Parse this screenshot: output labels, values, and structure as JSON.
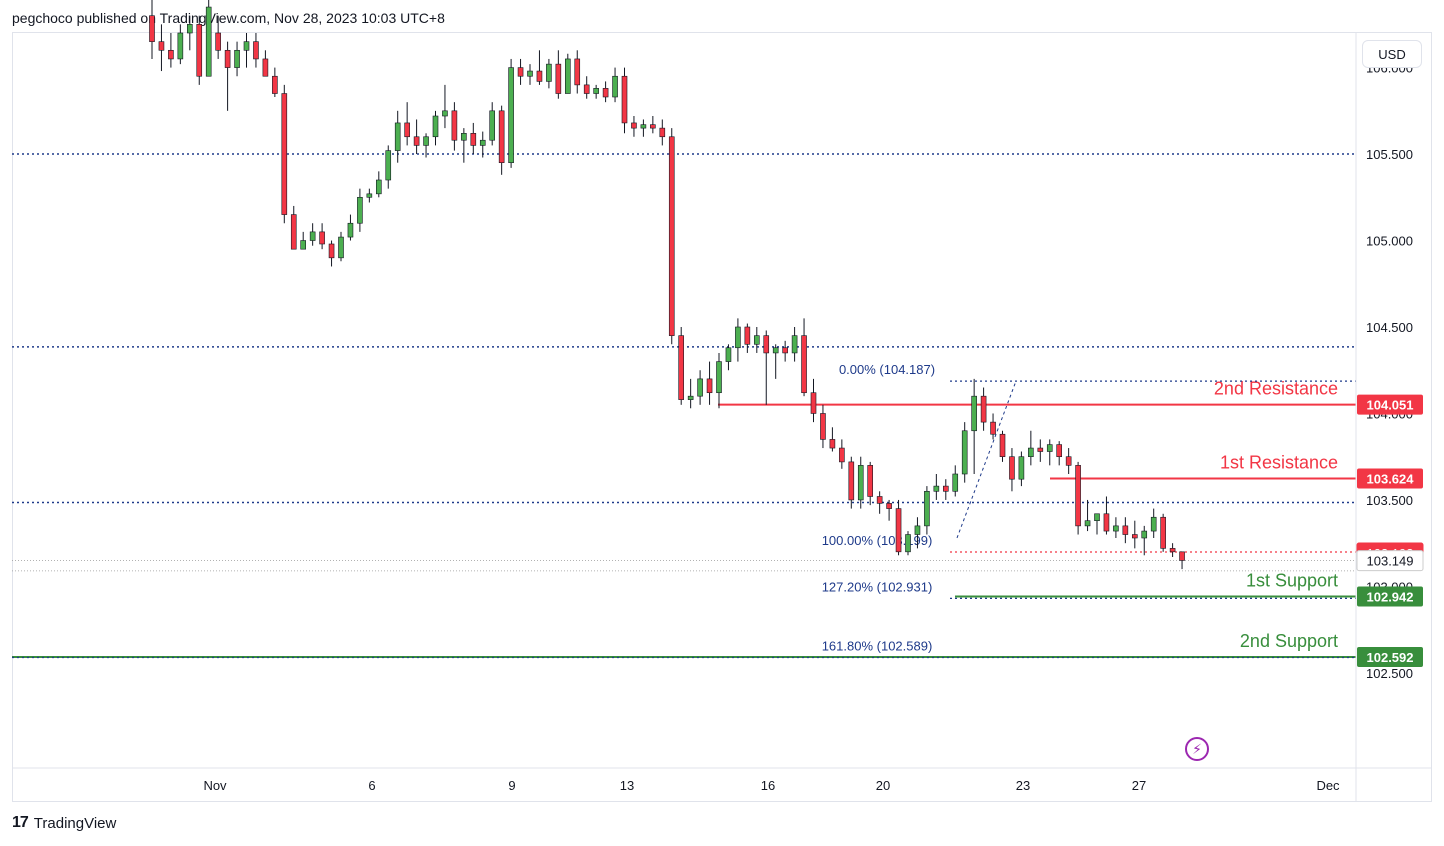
{
  "header": {
    "text": "pegchoco published on TradingView.com, Nov 28, 2023 10:03 UTC+8"
  },
  "footer": {
    "logo_mark": "17",
    "logo_text": "TradingView"
  },
  "toolbar": {
    "currency": "USD"
  },
  "chart_data": {
    "type": "candlestick",
    "ylim": [
      101.95,
      106.2
    ],
    "price_axis_ticks": [
      "106.000",
      "105.500",
      "105.000",
      "104.500",
      "104.000",
      "103.500",
      "103.000",
      "102.500"
    ],
    "time_axis_ticks": [
      "Nov",
      "6",
      "9",
      "13",
      "16",
      "20",
      "23",
      "27",
      "Dec"
    ],
    "dotted_levels": [
      105.5,
      104.385,
      103.485
    ],
    "resistance_lines": [
      {
        "label": "2nd Resistance",
        "value": 104.051,
        "badge": "104.051",
        "color": "#f23645"
      },
      {
        "label": "1st Resistance",
        "value": 103.624,
        "badge": "103.624",
        "color": "#f23645"
      }
    ],
    "support_lines": [
      {
        "label": "1st Support",
        "value": 102.942,
        "badge": "102.942",
        "color": "#388e3c"
      },
      {
        "label": "2nd Support",
        "value": 102.592,
        "badge": "102.592",
        "color": "#388e3c"
      }
    ],
    "price_badges": [
      {
        "text": "103.193",
        "value": 103.193,
        "color": "#f23645",
        "text_color": "#ffffff"
      },
      {
        "text": "103.149",
        "value": 103.149,
        "color": "#ffffff",
        "text_color": "#131722"
      }
    ],
    "fib_labels": [
      {
        "text": "0.00% (104.187)",
        "value": 104.187
      },
      {
        "text": "100.00% (103.199)",
        "value": 103.199
      },
      {
        "text": "127.20% (102.931)",
        "value": 102.931
      },
      {
        "text": "161.80% (102.589)",
        "value": 102.589
      }
    ],
    "candles": [
      [
        106.3,
        106.4,
        106.05,
        106.15
      ],
      [
        106.15,
        106.25,
        105.98,
        106.1
      ],
      [
        106.1,
        106.2,
        106.0,
        106.05
      ],
      [
        106.05,
        106.25,
        106.02,
        106.2
      ],
      [
        106.2,
        106.3,
        106.1,
        106.25
      ],
      [
        106.25,
        106.3,
        105.9,
        105.95
      ],
      [
        105.95,
        106.4,
        105.95,
        106.35
      ],
      [
        106.2,
        106.3,
        106.05,
        106.1
      ],
      [
        106.1,
        106.15,
        105.75,
        106.0
      ],
      [
        106.0,
        106.15,
        105.95,
        106.1
      ],
      [
        106.1,
        106.2,
        106.0,
        106.15
      ],
      [
        106.15,
        106.2,
        106.0,
        106.05
      ],
      [
        106.05,
        106.1,
        105.95,
        105.95
      ],
      [
        105.95,
        106.0,
        105.83,
        105.85
      ],
      [
        105.85,
        105.9,
        105.1,
        105.15
      ],
      [
        105.15,
        105.2,
        104.95,
        104.95
      ],
      [
        104.95,
        105.05,
        104.95,
        105.0
      ],
      [
        105.0,
        105.1,
        104.97,
        105.05
      ],
      [
        105.05,
        105.1,
        104.95,
        104.98
      ],
      [
        104.98,
        105.0,
        104.85,
        104.9
      ],
      [
        104.9,
        105.05,
        104.88,
        105.02
      ],
      [
        105.02,
        105.15,
        105.0,
        105.1
      ],
      [
        105.1,
        105.3,
        105.05,
        105.25
      ],
      [
        105.25,
        105.3,
        105.22,
        105.27
      ],
      [
        105.27,
        105.4,
        105.25,
        105.35
      ],
      [
        105.35,
        105.55,
        105.3,
        105.52
      ],
      [
        105.52,
        105.75,
        105.45,
        105.68
      ],
      [
        105.68,
        105.8,
        105.55,
        105.6
      ],
      [
        105.6,
        105.7,
        105.5,
        105.55
      ],
      [
        105.55,
        105.62,
        105.48,
        105.6
      ],
      [
        105.6,
        105.75,
        105.55,
        105.72
      ],
      [
        105.72,
        105.9,
        105.65,
        105.75
      ],
      [
        105.75,
        105.8,
        105.52,
        105.58
      ],
      [
        105.58,
        105.65,
        105.45,
        105.62
      ],
      [
        105.62,
        105.68,
        105.5,
        105.55
      ],
      [
        105.55,
        105.63,
        105.48,
        105.58
      ],
      [
        105.58,
        105.8,
        105.55,
        105.75
      ],
      [
        105.75,
        105.78,
        105.38,
        105.45
      ],
      [
        105.45,
        106.05,
        105.42,
        106.0
      ],
      [
        106.0,
        106.05,
        105.9,
        105.95
      ],
      [
        105.95,
        106.02,
        105.9,
        105.98
      ],
      [
        105.98,
        106.1,
        105.9,
        105.92
      ],
      [
        105.92,
        106.05,
        105.88,
        106.02
      ],
      [
        106.02,
        106.1,
        105.82,
        105.85
      ],
      [
        105.85,
        106.08,
        105.85,
        106.05
      ],
      [
        106.05,
        106.1,
        105.85,
        105.9
      ],
      [
        105.9,
        105.95,
        105.82,
        105.85
      ],
      [
        105.85,
        105.9,
        105.82,
        105.88
      ],
      [
        105.88,
        105.92,
        105.8,
        105.83
      ],
      [
        105.83,
        106.0,
        105.8,
        105.95
      ],
      [
        105.95,
        106.0,
        105.62,
        105.68
      ],
      [
        105.68,
        105.72,
        105.6,
        105.65
      ],
      [
        105.65,
        105.7,
        105.6,
        105.67
      ],
      [
        105.67,
        105.72,
        105.62,
        105.65
      ],
      [
        105.65,
        105.7,
        105.55,
        105.6
      ],
      [
        105.6,
        105.65,
        104.4,
        104.45
      ],
      [
        104.45,
        104.5,
        104.05,
        104.08
      ],
      [
        104.08,
        104.2,
        104.03,
        104.1
      ],
      [
        104.1,
        104.25,
        104.05,
        104.2
      ],
      [
        104.2,
        104.3,
        104.05,
        104.12
      ],
      [
        104.12,
        104.35,
        104.03,
        104.3
      ],
      [
        104.3,
        104.4,
        104.25,
        104.38
      ],
      [
        104.38,
        104.55,
        104.3,
        104.5
      ],
      [
        104.5,
        104.52,
        104.35,
        104.4
      ],
      [
        104.4,
        104.5,
        104.35,
        104.45
      ],
      [
        104.45,
        104.48,
        104.05,
        104.35
      ],
      [
        104.35,
        104.4,
        104.2,
        104.38
      ],
      [
        104.38,
        104.42,
        104.3,
        104.35
      ],
      [
        104.35,
        104.5,
        104.3,
        104.45
      ],
      [
        104.45,
        104.55,
        104.1,
        104.12
      ],
      [
        104.12,
        104.2,
        103.95,
        104.0
      ],
      [
        104.0,
        104.05,
        103.8,
        103.85
      ],
      [
        103.85,
        103.92,
        103.78,
        103.8
      ],
      [
        103.8,
        103.85,
        103.68,
        103.72
      ],
      [
        103.72,
        103.75,
        103.45,
        103.5
      ],
      [
        103.5,
        103.75,
        103.45,
        103.7
      ],
      [
        103.7,
        103.72,
        103.47,
        103.52
      ],
      [
        103.52,
        103.55,
        103.42,
        103.48
      ],
      [
        103.48,
        103.5,
        103.38,
        103.45
      ],
      [
        103.45,
        103.5,
        103.18,
        103.2
      ],
      [
        103.2,
        103.32,
        103.18,
        103.3
      ],
      [
        103.3,
        103.4,
        103.22,
        103.35
      ],
      [
        103.35,
        103.58,
        103.3,
        103.55
      ],
      [
        103.55,
        103.65,
        103.5,
        103.58
      ],
      [
        103.58,
        103.62,
        103.5,
        103.55
      ],
      [
        103.55,
        103.7,
        103.52,
        103.65
      ],
      [
        103.65,
        103.95,
        103.6,
        103.9
      ],
      [
        103.9,
        104.2,
        103.65,
        104.1
      ],
      [
        104.1,
        104.15,
        103.9,
        103.95
      ],
      [
        103.95,
        104.0,
        103.85,
        103.88
      ],
      [
        103.88,
        103.9,
        103.72,
        103.75
      ],
      [
        103.75,
        103.8,
        103.55,
        103.62
      ],
      [
        103.62,
        103.78,
        103.58,
        103.75
      ],
      [
        103.75,
        103.9,
        103.7,
        103.8
      ],
      [
        103.8,
        103.85,
        103.72,
        103.78
      ],
      [
        103.78,
        103.85,
        103.7,
        103.82
      ],
      [
        103.82,
        103.84,
        103.7,
        103.75
      ],
      [
        103.75,
        103.8,
        103.65,
        103.7
      ],
      [
        103.7,
        103.72,
        103.3,
        103.35
      ],
      [
        103.35,
        103.5,
        103.32,
        103.38
      ],
      [
        103.38,
        103.42,
        103.3,
        103.42
      ],
      [
        103.42,
        103.52,
        103.3,
        103.32
      ],
      [
        103.32,
        103.4,
        103.28,
        103.35
      ],
      [
        103.35,
        103.4,
        103.25,
        103.3
      ],
      [
        103.3,
        103.38,
        103.22,
        103.28
      ],
      [
        103.28,
        103.35,
        103.18,
        103.32
      ],
      [
        103.32,
        103.45,
        103.28,
        103.4
      ],
      [
        103.4,
        103.42,
        103.2,
        103.22
      ],
      [
        103.22,
        103.25,
        103.17,
        103.2
      ],
      [
        103.2,
        103.2,
        103.1,
        103.15
      ]
    ]
  }
}
